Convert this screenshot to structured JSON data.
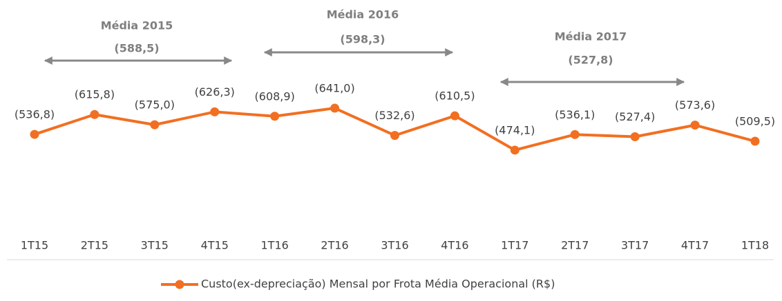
{
  "chart_data": {
    "type": "line",
    "categories": [
      "1T15",
      "2T15",
      "3T15",
      "4T15",
      "1T16",
      "2T16",
      "3T16",
      "4T16",
      "1T17",
      "2T17",
      "3T17",
      "4T17",
      "1T18"
    ],
    "series": [
      {
        "name": "Custo(ex-depreciação) Mensal por Frota Média Operacional (R$)",
        "color": "#f26f21",
        "values": [
          536.8,
          615.8,
          575.0,
          626.3,
          608.9,
          641.0,
          532.6,
          610.5,
          474.1,
          536.1,
          527.4,
          573.6,
          509.5
        ],
        "value_labels": [
          "(536,8)",
          "(615,8)",
          "(575,0)",
          "(626,3)",
          "(608,9)",
          "(641,0)",
          "(532,6)",
          "(610,5)",
          "(474,1)",
          "(536,1)",
          "(527,4)",
          "(573,6)",
          "(509,5)"
        ]
      }
    ],
    "ylim": [
      0,
      1000
    ],
    "legend": "bottom",
    "annotations": [
      {
        "title": "Média 2015",
        "label": "(588,5)"
      },
      {
        "title": "Média 2016",
        "label": "(598,3)"
      },
      {
        "title": "Média 2017",
        "label": "(527,8)"
      }
    ]
  }
}
